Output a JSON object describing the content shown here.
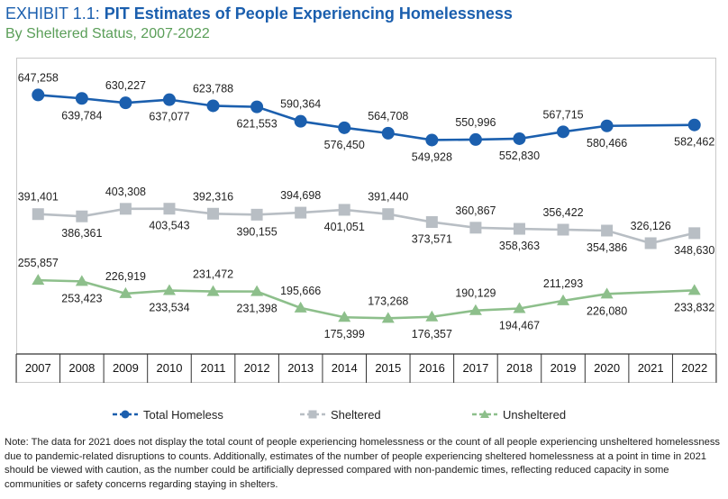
{
  "header": {
    "exhibit_label": "EXHIBIT 1.1:",
    "title": "PIT Estimates of People Experiencing Homelessness",
    "subtitle": "By Sheltered Status, 2007-2022"
  },
  "chart_data": {
    "type": "line",
    "x": [
      "2007",
      "2008",
      "2009",
      "2010",
      "2011",
      "2012",
      "2013",
      "2014",
      "2015",
      "2016",
      "2017",
      "2018",
      "2019",
      "2020",
      "2021",
      "2022"
    ],
    "series": [
      {
        "name": "Total Homeless",
        "color": "#1b5fae",
        "marker": "circle",
        "values": [
          647258,
          639784,
          630227,
          637077,
          623788,
          621553,
          590364,
          576450,
          564708,
          549928,
          550996,
          552830,
          567715,
          580466,
          null,
          582462
        ],
        "labels": [
          "647,258",
          "639,784",
          "630,227",
          "637,077",
          "623,788",
          "621,553",
          "590,364",
          "576,450",
          "564,708",
          "549,928",
          "550,996",
          "552,830",
          "567,715",
          "580,466",
          null,
          "582,462"
        ]
      },
      {
        "name": "Sheltered",
        "color": "#b8bec4",
        "marker": "square",
        "values": [
          391401,
          386361,
          403308,
          403543,
          392316,
          390155,
          394698,
          401051,
          391440,
          373571,
          360867,
          358363,
          356422,
          354386,
          326126,
          348630
        ],
        "labels": [
          "391,401",
          "386,361",
          "403,308",
          "403,543",
          "392,316",
          "390,155",
          "394,698",
          "401,051",
          "391,440",
          "373,571",
          "360,867",
          "358,363",
          "356,422",
          "354,386",
          "326,126",
          "348,630"
        ]
      },
      {
        "name": "Unsheltered",
        "color": "#8dbf8b",
        "marker": "triangle",
        "values": [
          255857,
          253423,
          226919,
          233534,
          231472,
          231398,
          195666,
          175399,
          173268,
          176357,
          190129,
          194467,
          211293,
          226080,
          null,
          233832
        ],
        "labels": [
          "255,857",
          "253,423",
          "226,919",
          "233,534",
          "231,472",
          "231,398",
          "195,666",
          "175,399",
          "173,268",
          "176,357",
          "190,129",
          "194,467",
          "211,293",
          "226,080",
          null,
          "233,832"
        ]
      }
    ],
    "legend_position": "bottom",
    "grid": false
  },
  "note": "Note: The data for 2021 does not display the total count of people experiencing homelessness or the count of all people experiencing unsheltered homelessness due to pandemic-related disruptions to counts. Additionally, estimates of the number of people experiencing sheltered homelessness at a point in time in 2021 should be viewed with caution, as the number could be artificially depressed compared with non-pandemic times, reflecting reduced capacity in some communities or safety concerns regarding staying in shelters."
}
